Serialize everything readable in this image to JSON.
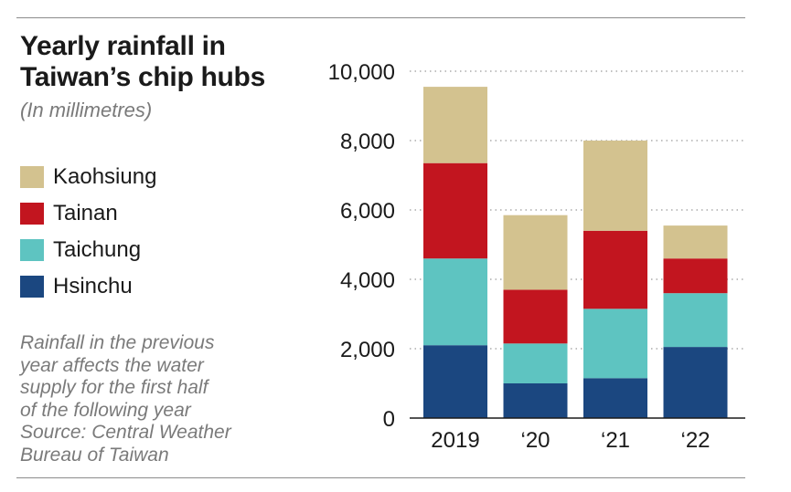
{
  "title_lines": [
    "Yearly rainfall in",
    "Taiwan’s chip hubs"
  ],
  "subtitle": "(In millimetres)",
  "note_lines": [
    "Rainfall in the previous",
    "year affects the water",
    "supply for the first half",
    "of the following year",
    "Source: Central Weather",
    "Bureau of Taiwan"
  ],
  "colors": {
    "Kaohsiung": "#d3c28f",
    "Tainan": "#c2151f",
    "Taichung": "#5ec4c1",
    "Hsinchu": "#1b4780"
  },
  "chart_data": {
    "type": "bar",
    "stacked": true,
    "title": "Yearly rainfall in Taiwan’s chip hubs",
    "subtitle": "(In millimetres)",
    "categories": [
      "2019",
      "‘20",
      "‘21",
      "‘22"
    ],
    "series": [
      {
        "name": "Hsinchu",
        "values": [
          2100,
          1000,
          1150,
          2050
        ]
      },
      {
        "name": "Taichung",
        "values": [
          2500,
          1150,
          2000,
          1550
        ]
      },
      {
        "name": "Tainan",
        "values": [
          2750,
          1550,
          2250,
          1000
        ]
      },
      {
        "name": "Kaohsiung",
        "values": [
          2200,
          2150,
          2600,
          950
        ]
      }
    ],
    "legend_order": [
      "Kaohsiung",
      "Tainan",
      "Taichung",
      "Hsinchu"
    ],
    "yticks": [
      "0",
      "2,000",
      "4,000",
      "6,000",
      "8,000",
      "10,000"
    ],
    "ytick_values": [
      0,
      2000,
      4000,
      6000,
      8000,
      10000
    ],
    "ylim": [
      0,
      10000
    ],
    "xlabel": "",
    "ylabel": "",
    "grid": "dotted horizontal",
    "legend_position": "left"
  }
}
